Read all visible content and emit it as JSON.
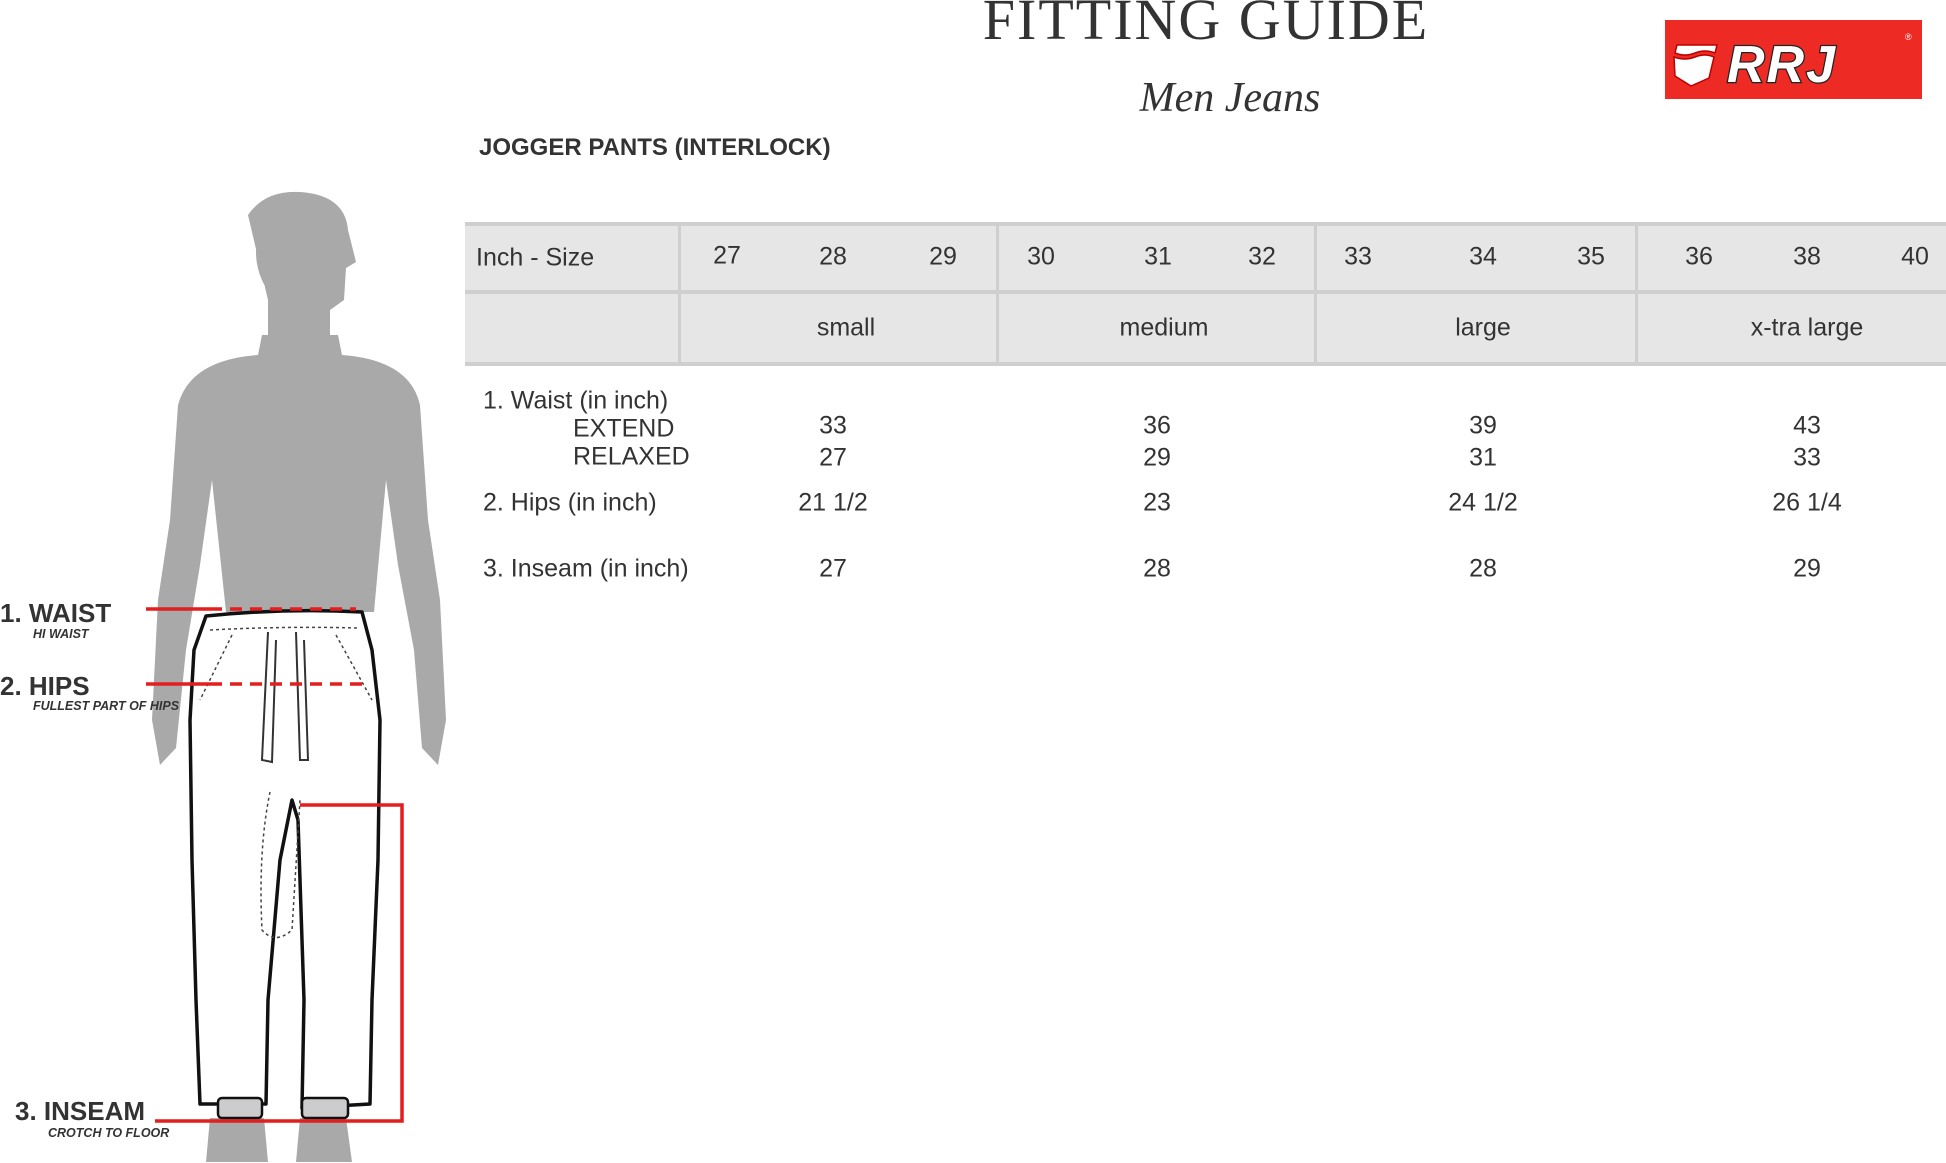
{
  "header": {
    "title": "FITTING GUIDE",
    "subtitle": "Men Jeans",
    "logo_text": "RRJ",
    "brand_color": "#ee2a24"
  },
  "product": "JOGGER PANTS (INTERLOCK)",
  "table": {
    "size_header": "Inch - Size",
    "sizes": [
      "27",
      "28",
      "29",
      "30",
      "31",
      "32",
      "33",
      "34",
      "35",
      "36",
      "38",
      "40"
    ],
    "groups": [
      "small",
      "medium",
      "large",
      "x-tra large"
    ],
    "rows": {
      "waist": {
        "label": "1. Waist (in inch)"
      },
      "extend": {
        "label": "EXTEND",
        "values": [
          "33",
          "36",
          "39",
          "43"
        ]
      },
      "relaxed": {
        "label": "RELAXED",
        "values": [
          "27",
          "29",
          "31",
          "33"
        ]
      },
      "hips": {
        "label": "2. Hips (in inch)",
        "values": [
          "21 1/2",
          "23",
          "24 1/2",
          "26 1/4"
        ]
      },
      "inseam": {
        "label": "3. Inseam (in inch)",
        "values": [
          "27",
          "28",
          "28",
          "29"
        ]
      }
    }
  },
  "figure": {
    "waist": {
      "label": "1. WAIST",
      "note": "HI WAIST"
    },
    "hips": {
      "label": "2. HIPS",
      "note": "FULLEST PART OF HIPS"
    },
    "inseam": {
      "label": "3. INSEAM",
      "note": "CROTCH TO FLOOR"
    },
    "line_color": "#e41e1e",
    "silhouette_color": "#a9a9a9"
  }
}
